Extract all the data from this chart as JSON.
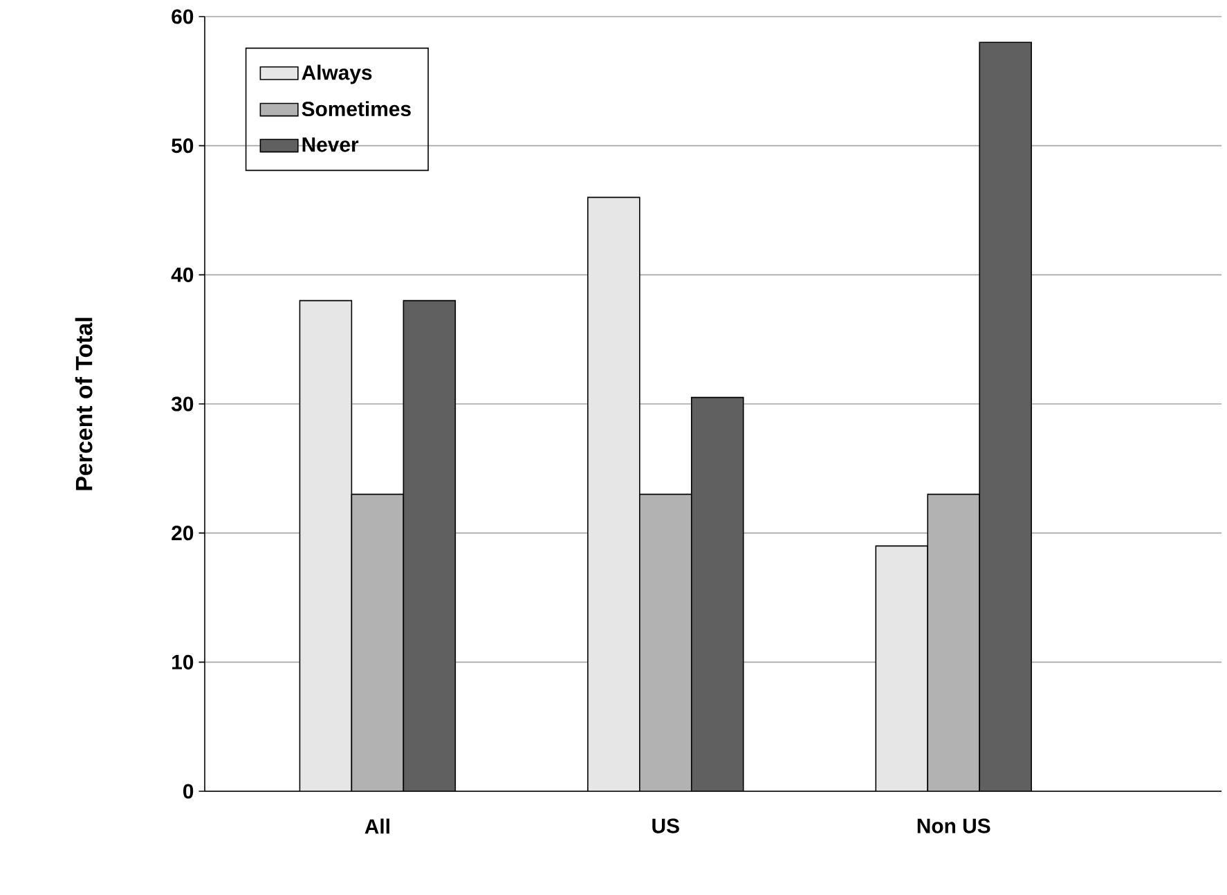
{
  "chart_data": {
    "type": "bar",
    "ylabel": "Percent of Total",
    "categories": [
      "All",
      "US",
      "Non US"
    ],
    "series": [
      {
        "name": "Always",
        "color": "#e6e6e6",
        "values": [
          38,
          46,
          19
        ]
      },
      {
        "name": "Sometimes",
        "color": "#b2b2b2",
        "values": [
          23,
          23,
          23
        ]
      },
      {
        "name": "Never",
        "color": "#606060",
        "values": [
          38,
          30.5,
          58
        ]
      }
    ],
    "ylim": [
      0,
      60
    ],
    "yticks": [
      0,
      10,
      20,
      30,
      40,
      50,
      60
    ],
    "grid": "y",
    "legend": "top left"
  }
}
